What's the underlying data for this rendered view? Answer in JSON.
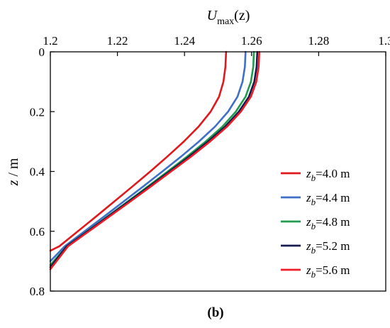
{
  "chart_data": {
    "type": "line",
    "panel_label": "(b)",
    "xlabel": {
      "main": "U",
      "sub": "max",
      "tail": "(z)"
    },
    "ylabel": {
      "var": "z",
      "unit": " / m"
    },
    "xlim": [
      1.2,
      1.3
    ],
    "ylim": [
      0,
      0.8
    ],
    "y_inverted": true,
    "x_axis_position": "top",
    "xticks": [
      "1.2",
      "1.22",
      "1.24",
      "1.26",
      "1.28",
      "1.3"
    ],
    "yticks": [
      "0",
      "0.2",
      "0.4",
      "0.6",
      "0.8"
    ],
    "grid": false,
    "legend_position": "right",
    "series": [
      {
        "name": "z_b=4.0 m",
        "legend": {
          "var": "z",
          "sub": "b",
          "val": "=4.0 m"
        },
        "color": "#e0181b",
        "points": [
          [
            1.2524,
            0
          ],
          [
            1.2522,
            0.05
          ],
          [
            1.2516,
            0.1
          ],
          [
            1.2503,
            0.15
          ],
          [
            1.2478,
            0.2
          ],
          [
            1.2442,
            0.25
          ],
          [
            1.2398,
            0.3
          ],
          [
            1.2349,
            0.35
          ],
          [
            1.2298,
            0.4
          ],
          [
            1.2245,
            0.45
          ],
          [
            1.2191,
            0.5
          ],
          [
            1.2137,
            0.55
          ],
          [
            1.2082,
            0.6
          ],
          [
            1.2027,
            0.65
          ],
          [
            1.2,
            0.665
          ]
        ]
      },
      {
        "name": "z_b=4.4 m",
        "legend": {
          "var": "z",
          "sub": "b",
          "val": "=4.4 m"
        },
        "color": "#3f6fc6",
        "points": [
          [
            1.2582,
            0
          ],
          [
            1.258,
            0.05
          ],
          [
            1.2573,
            0.1
          ],
          [
            1.2558,
            0.15
          ],
          [
            1.253,
            0.2
          ],
          [
            1.2491,
            0.25
          ],
          [
            1.2443,
            0.3
          ],
          [
            1.239,
            0.35
          ],
          [
            1.2334,
            0.4
          ],
          [
            1.2277,
            0.45
          ],
          [
            1.2219,
            0.5
          ],
          [
            1.2161,
            0.55
          ],
          [
            1.2102,
            0.6
          ],
          [
            1.2043,
            0.65
          ],
          [
            1.2,
            0.7
          ]
        ]
      },
      {
        "name": "z_b=4.8 m",
        "legend": {
          "var": "z",
          "sub": "b",
          "val": "=4.8 m"
        },
        "color": "#1f9a4e",
        "points": [
          [
            1.2607,
            0
          ],
          [
            1.2605,
            0.05
          ],
          [
            1.2598,
            0.1
          ],
          [
            1.2582,
            0.15
          ],
          [
            1.2553,
            0.2
          ],
          [
            1.2513,
            0.25
          ],
          [
            1.2463,
            0.3
          ],
          [
            1.2408,
            0.35
          ],
          [
            1.235,
            0.4
          ],
          [
            1.2291,
            0.45
          ],
          [
            1.2231,
            0.5
          ],
          [
            1.2171,
            0.55
          ],
          [
            1.211,
            0.6
          ],
          [
            1.2049,
            0.65
          ],
          [
            1.2,
            0.713
          ]
        ]
      },
      {
        "name": "z_b=5.2 m",
        "legend": {
          "var": "z",
          "sub": "b",
          "val": "=5.2 m"
        },
        "color": "#151b4e",
        "points": [
          [
            1.2617,
            0
          ],
          [
            1.2615,
            0.05
          ],
          [
            1.2608,
            0.1
          ],
          [
            1.2592,
            0.15
          ],
          [
            1.2562,
            0.2
          ],
          [
            1.2521,
            0.25
          ],
          [
            1.247,
            0.3
          ],
          [
            1.2414,
            0.35
          ],
          [
            1.2355,
            0.4
          ],
          [
            1.2295,
            0.45
          ],
          [
            1.2234,
            0.5
          ],
          [
            1.2173,
            0.55
          ],
          [
            1.2111,
            0.6
          ],
          [
            1.2049,
            0.65
          ],
          [
            1.2,
            0.72
          ]
        ]
      },
      {
        "name": "z_b=5.6 m",
        "legend": {
          "var": "z",
          "sub": "b",
          "val": "=5.6 m"
        },
        "color": "#ee1c24",
        "points": [
          [
            1.2623,
            0
          ],
          [
            1.2621,
            0.05
          ],
          [
            1.2614,
            0.1
          ],
          [
            1.2598,
            0.15
          ],
          [
            1.2568,
            0.2
          ],
          [
            1.2527,
            0.25
          ],
          [
            1.2476,
            0.3
          ],
          [
            1.242,
            0.35
          ],
          [
            1.236,
            0.4
          ],
          [
            1.23,
            0.45
          ],
          [
            1.2239,
            0.5
          ],
          [
            1.2177,
            0.55
          ],
          [
            1.2115,
            0.6
          ],
          [
            1.2053,
            0.65
          ],
          [
            1.2,
            0.727
          ]
        ]
      }
    ]
  }
}
